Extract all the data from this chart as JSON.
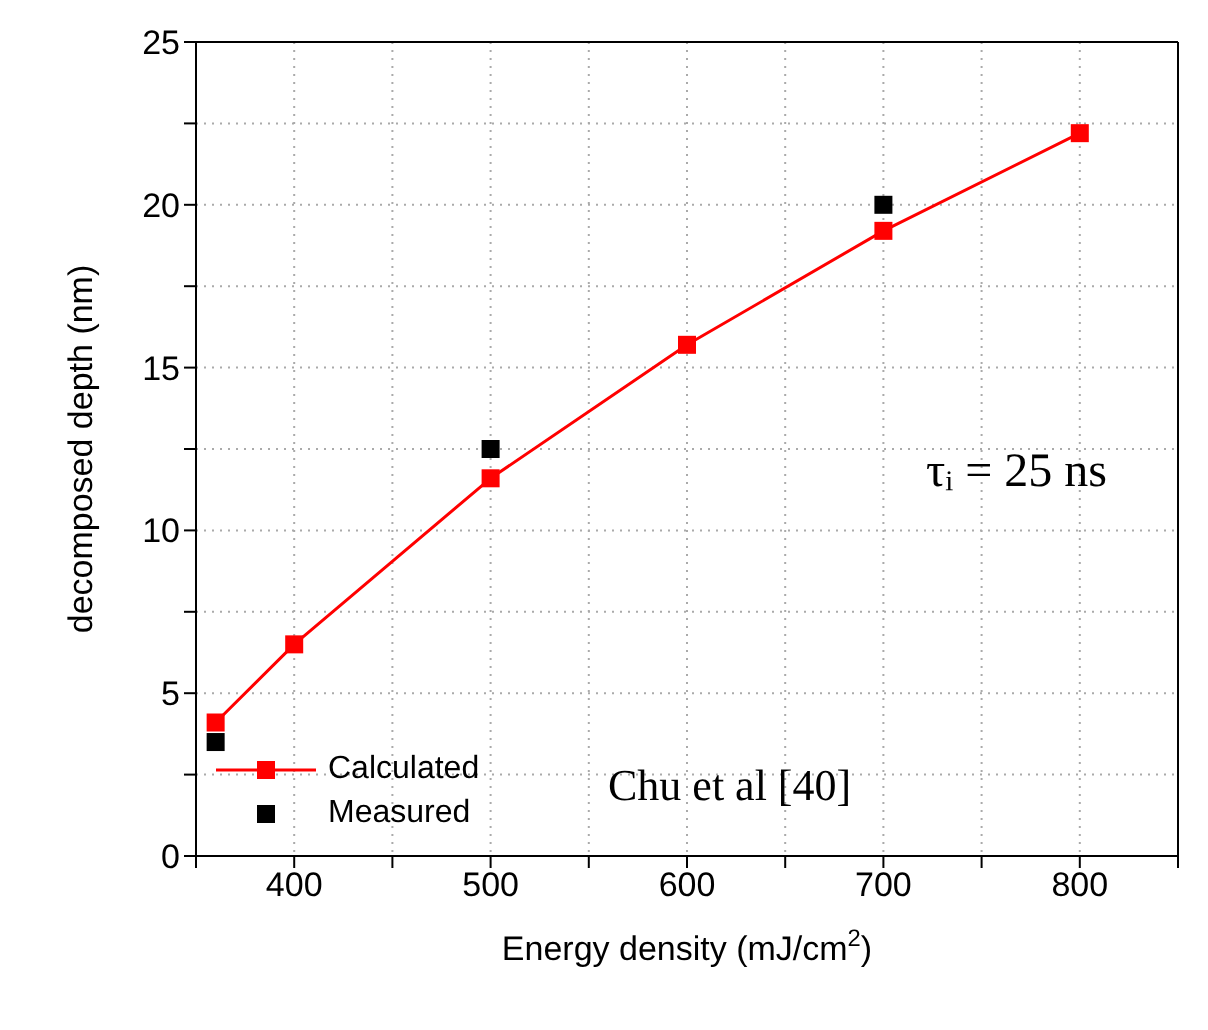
{
  "chart_data": {
    "type": "line",
    "xlabel": "Energy density (mJ/cm$^{2}$)",
    "ylabel": "decomposed depth (nm)",
    "xlim": [
      350,
      850
    ],
    "xticks": [
      {
        "value": 350,
        "label": null
      },
      400,
      {
        "value": 450,
        "label": null
      },
      500,
      {
        "value": 550,
        "label": null
      },
      600,
      {
        "value": 650,
        "label": null
      },
      700,
      {
        "value": 750,
        "label": null
      },
      800,
      {
        "value": 850,
        "label": null
      }
    ],
    "ylim": [
      0,
      25
    ],
    "yticks": [
      0,
      {
        "value": 2.5,
        "label": null
      },
      5,
      {
        "value": 7.5,
        "label": null
      },
      10,
      {
        "value": 12.5,
        "label": null
      },
      15,
      {
        "value": 17.5,
        "label": null
      },
      20,
      {
        "value": 22.5,
        "label": null
      },
      25
    ],
    "grid": true,
    "legend": "bottom left",
    "marker": "square",
    "line_style": "solid",
    "series": [
      {
        "name": "Calculated",
        "type": "line",
        "color": "#ff0000",
        "x": [
          360,
          400,
          500,
          600,
          700,
          800
        ],
        "values": [
          4.1,
          6.5,
          11.6,
          15.7,
          19.2,
          22.2
        ]
      },
      {
        "name": "Measured",
        "type": "scatter",
        "color": "#000000",
        "x": [
          360,
          500,
          700
        ],
        "values": [
          3.5,
          12.5,
          20.0
        ]
      }
    ],
    "annotations": [
      "τᵢ = 25 ns",
      "Chu et al [40]"
    ]
  }
}
